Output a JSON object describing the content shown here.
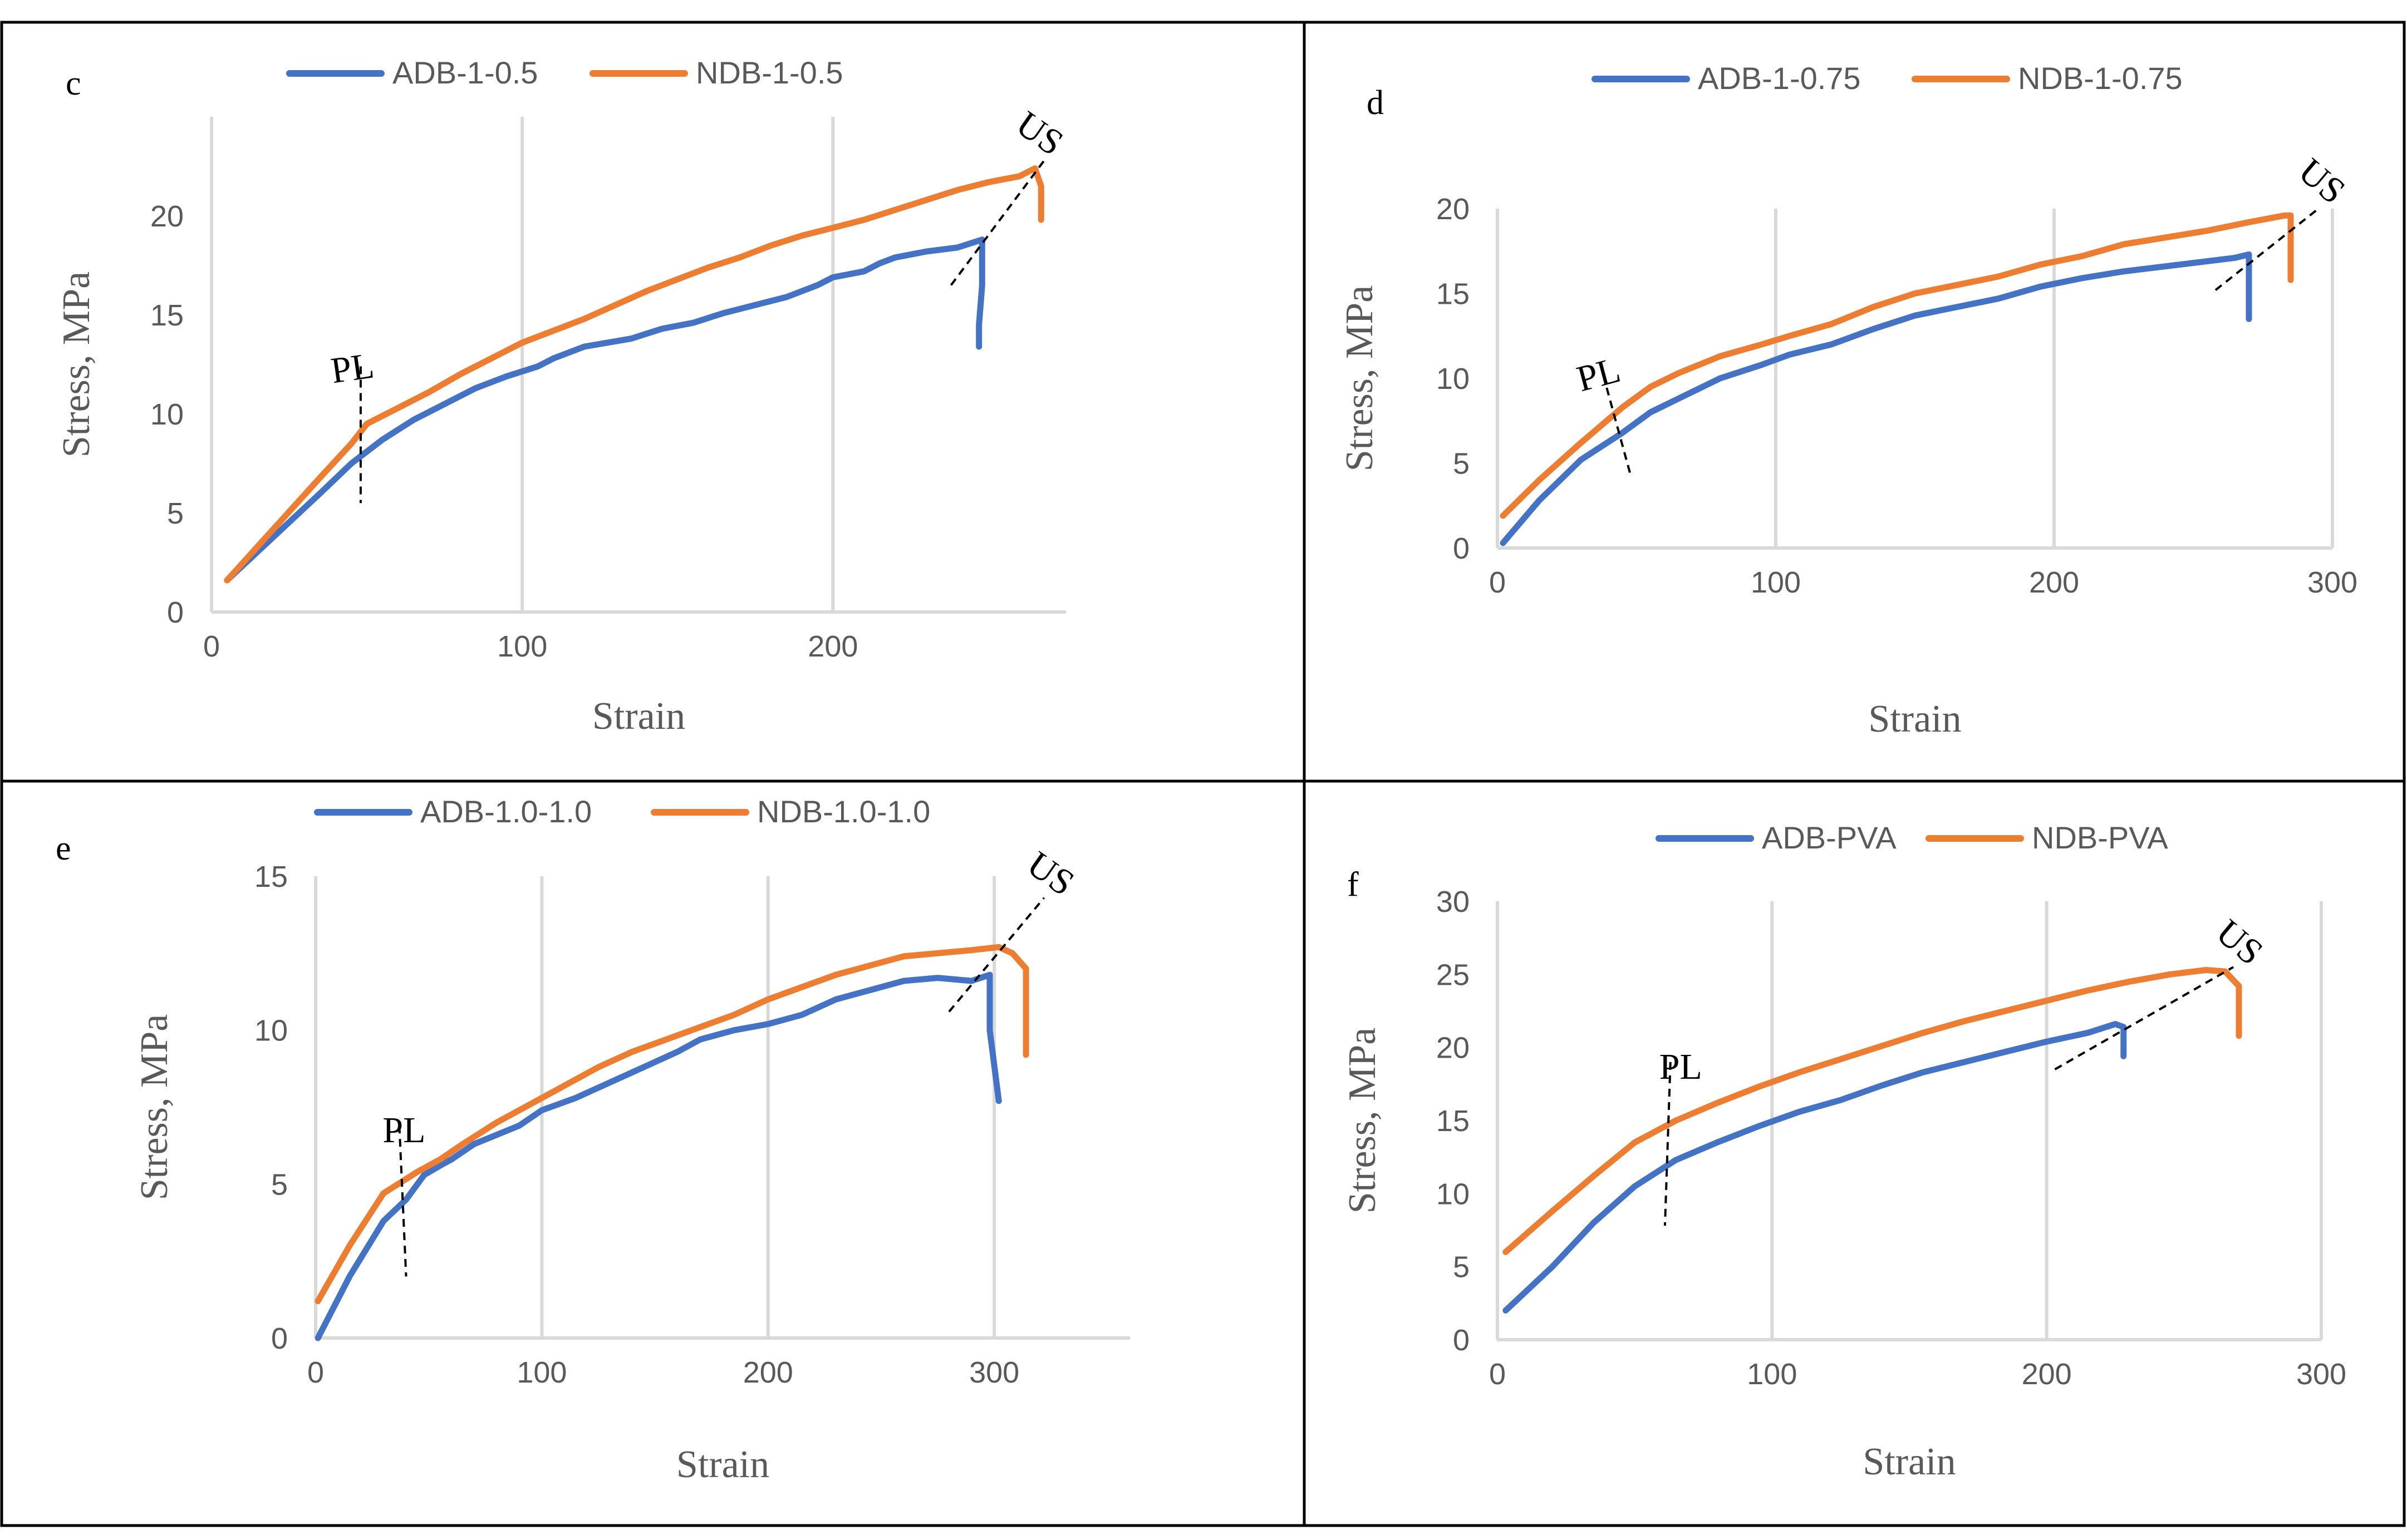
{
  "chart_data": [
    {
      "type": "line",
      "panel_label": "c",
      "title": "",
      "xlabel": "Strain",
      "ylabel": "Stress, MPa",
      "xlim": [
        0,
        275
      ],
      "ylim": [
        0,
        25
      ],
      "xticks": [
        0,
        100,
        200
      ],
      "yticks": [
        0,
        5,
        10,
        15,
        20
      ],
      "grid": "vertical",
      "legend_position": "top",
      "colors": {
        "ADB-1-0.5": "#4472c4",
        "NDB-1-0.5": "#ed7d31"
      },
      "series": [
        {
          "name": "ADB-1-0.5",
          "x": [
            5,
            20,
            35,
            45,
            55,
            65,
            75,
            85,
            95,
            105,
            110,
            115,
            120,
            135,
            145,
            155,
            165,
            175,
            185,
            195,
            200,
            210,
            215,
            220,
            230,
            240,
            248,
            248,
            247,
            247
          ],
          "y": [
            1.6,
            3.8,
            6.0,
            7.5,
            8.7,
            9.7,
            10.5,
            11.3,
            11.9,
            12.4,
            12.8,
            13.1,
            13.4,
            13.8,
            14.3,
            14.6,
            15.1,
            15.5,
            15.9,
            16.5,
            16.9,
            17.2,
            17.6,
            17.9,
            18.2,
            18.4,
            18.8,
            16.5,
            14.5,
            13.4
          ]
        },
        {
          "name": "NDB-1-0.5",
          "x": [
            5,
            20,
            35,
            45,
            50,
            60,
            70,
            80,
            90,
            100,
            110,
            120,
            130,
            140,
            150,
            160,
            170,
            180,
            190,
            200,
            210,
            220,
            230,
            240,
            250,
            260,
            265,
            267,
            267
          ],
          "y": [
            1.6,
            4.2,
            6.8,
            8.5,
            9.5,
            10.3,
            11.1,
            12.0,
            12.8,
            13.6,
            14.2,
            14.8,
            15.5,
            16.2,
            16.8,
            17.4,
            17.9,
            18.5,
            19.0,
            19.4,
            19.8,
            20.3,
            20.8,
            21.3,
            21.7,
            22.0,
            22.4,
            21.5,
            19.8
          ]
        }
      ],
      "annotations": [
        {
          "text": "PL",
          "line": [
            [
              48,
              12.4
            ],
            [
              48,
              5.5
            ]
          ]
        },
        {
          "text": "US",
          "line": [
            [
              238,
              16.5
            ],
            [
              268,
              22.8
            ]
          ]
        }
      ]
    },
    {
      "type": "line",
      "panel_label": "d",
      "title": "",
      "xlabel": "Strain",
      "ylabel": "Stress, MPa",
      "xlim": [
        0,
        300
      ],
      "ylim": [
        0,
        20
      ],
      "xticks": [
        0,
        100,
        200,
        300
      ],
      "yticks": [
        0,
        5,
        10,
        15,
        20
      ],
      "grid": "vertical",
      "legend_position": "top",
      "colors": {
        "ADB-1-0.75": "#4472c4",
        "NDB-1-0.75": "#ed7d31"
      },
      "series": [
        {
          "name": "ADB-1-0.75",
          "x": [
            2,
            15,
            30,
            45,
            55,
            65,
            80,
            95,
            105,
            120,
            135,
            150,
            165,
            180,
            195,
            210,
            225,
            240,
            255,
            265,
            270,
            270
          ],
          "y": [
            0.3,
            2.8,
            5.2,
            6.8,
            8.0,
            8.8,
            10.0,
            10.8,
            11.4,
            12.0,
            12.9,
            13.7,
            14.2,
            14.7,
            15.4,
            15.9,
            16.3,
            16.6,
            16.9,
            17.1,
            17.3,
            13.5
          ]
        },
        {
          "name": "NDB-1-0.75",
          "x": [
            2,
            15,
            30,
            45,
            55,
            65,
            80,
            95,
            105,
            120,
            135,
            150,
            165,
            180,
            195,
            210,
            225,
            240,
            255,
            270,
            283,
            285,
            285
          ],
          "y": [
            1.9,
            4.0,
            6.2,
            8.3,
            9.5,
            10.3,
            11.3,
            12.0,
            12.5,
            13.2,
            14.2,
            15.0,
            15.5,
            16.0,
            16.7,
            17.2,
            17.9,
            18.3,
            18.7,
            19.2,
            19.6,
            19.6,
            15.8
          ]
        }
      ],
      "annotations": [
        {
          "text": "PL",
          "line": [
            [
              38,
              10.2
            ],
            [
              48,
              4.2
            ]
          ]
        },
        {
          "text": "US",
          "line": [
            [
              258,
              15.2
            ],
            [
              295,
              20.0
            ]
          ]
        }
      ]
    },
    {
      "type": "line",
      "panel_label": "e",
      "title": "",
      "xlabel": "Strain",
      "ylabel": "Stress, MPa",
      "xlim": [
        0,
        360
      ],
      "ylim": [
        0,
        15
      ],
      "xticks": [
        0,
        100,
        200,
        300
      ],
      "yticks": [
        0,
        5,
        10,
        15
      ],
      "grid": "vertical",
      "legend_position": "top",
      "colors": {
        "ADB-1.0-1.0": "#4472c4",
        "NDB-1.0-1.0": "#ed7d31"
      },
      "series": [
        {
          "name": "ADB-1.0-1.0",
          "x": [
            1,
            15,
            30,
            40,
            48,
            55,
            60,
            70,
            80,
            90,
            100,
            115,
            130,
            145,
            160,
            170,
            185,
            200,
            215,
            230,
            245,
            260,
            275,
            290,
            298,
            298,
            302
          ],
          "y": [
            0.0,
            2.0,
            3.8,
            4.5,
            5.3,
            5.6,
            5.8,
            6.3,
            6.6,
            6.9,
            7.4,
            7.8,
            8.3,
            8.8,
            9.3,
            9.7,
            10.0,
            10.2,
            10.5,
            11.0,
            11.3,
            11.6,
            11.7,
            11.6,
            11.8,
            10.0,
            7.7
          ]
        },
        {
          "name": "NDB-1.0-1.0",
          "x": [
            1,
            15,
            30,
            45,
            55,
            65,
            80,
            95,
            110,
            125,
            140,
            155,
            170,
            185,
            200,
            215,
            230,
            245,
            260,
            275,
            290,
            302,
            308,
            314,
            314
          ],
          "y": [
            1.2,
            3.0,
            4.7,
            5.4,
            5.8,
            6.3,
            7.0,
            7.6,
            8.2,
            8.8,
            9.3,
            9.7,
            10.1,
            10.5,
            11.0,
            11.4,
            11.8,
            12.1,
            12.4,
            12.5,
            12.6,
            12.7,
            12.5,
            12.0,
            9.2
          ]
        }
      ],
      "annotations": [
        {
          "text": "PL",
          "line": [
            [
              37,
              6.9
            ],
            [
              40,
              2.0
            ]
          ]
        },
        {
          "text": "US",
          "line": [
            [
              280,
              10.6
            ],
            [
              322,
              14.3
            ]
          ]
        }
      ]
    },
    {
      "type": "line",
      "panel_label": "f",
      "title": "",
      "xlabel": "Strain",
      "ylabel": "Stress, MPa",
      "xlim": [
        0,
        300
      ],
      "ylim": [
        0,
        30
      ],
      "xticks": [
        0,
        100,
        200,
        300
      ],
      "yticks": [
        0,
        5,
        10,
        15,
        20,
        25,
        30
      ],
      "grid": "vertical",
      "legend_position": "top",
      "colors": {
        "ADB-PVA": "#4472c4",
        "NDB-PVA": "#ed7d31"
      },
      "series": [
        {
          "name": "ADB-PVA",
          "x": [
            3,
            20,
            35,
            50,
            65,
            80,
            95,
            110,
            125,
            140,
            155,
            170,
            185,
            200,
            215,
            225,
            228,
            228
          ],
          "y": [
            2.0,
            5.0,
            8.0,
            10.5,
            12.3,
            13.5,
            14.6,
            15.6,
            16.4,
            17.4,
            18.3,
            19.0,
            19.7,
            20.4,
            21.0,
            21.6,
            21.4,
            19.4
          ]
        },
        {
          "name": "NDB-PVA",
          "x": [
            3,
            20,
            35,
            50,
            65,
            80,
            95,
            110,
            125,
            140,
            155,
            170,
            185,
            200,
            215,
            230,
            245,
            258,
            265,
            270,
            270
          ],
          "y": [
            6.0,
            8.8,
            11.2,
            13.5,
            15.0,
            16.2,
            17.3,
            18.3,
            19.2,
            20.1,
            21.0,
            21.8,
            22.5,
            23.2,
            23.9,
            24.5,
            25.0,
            25.3,
            25.2,
            24.2,
            20.8
          ]
        }
      ],
      "annotations": [
        {
          "text": "PL",
          "line": [
            [
              63,
              19.0
            ],
            [
              61,
              7.8
            ]
          ]
        },
        {
          "text": "US",
          "line": [
            [
              203,
              18.5
            ],
            [
              268,
              25.5
            ]
          ]
        }
      ]
    }
  ]
}
